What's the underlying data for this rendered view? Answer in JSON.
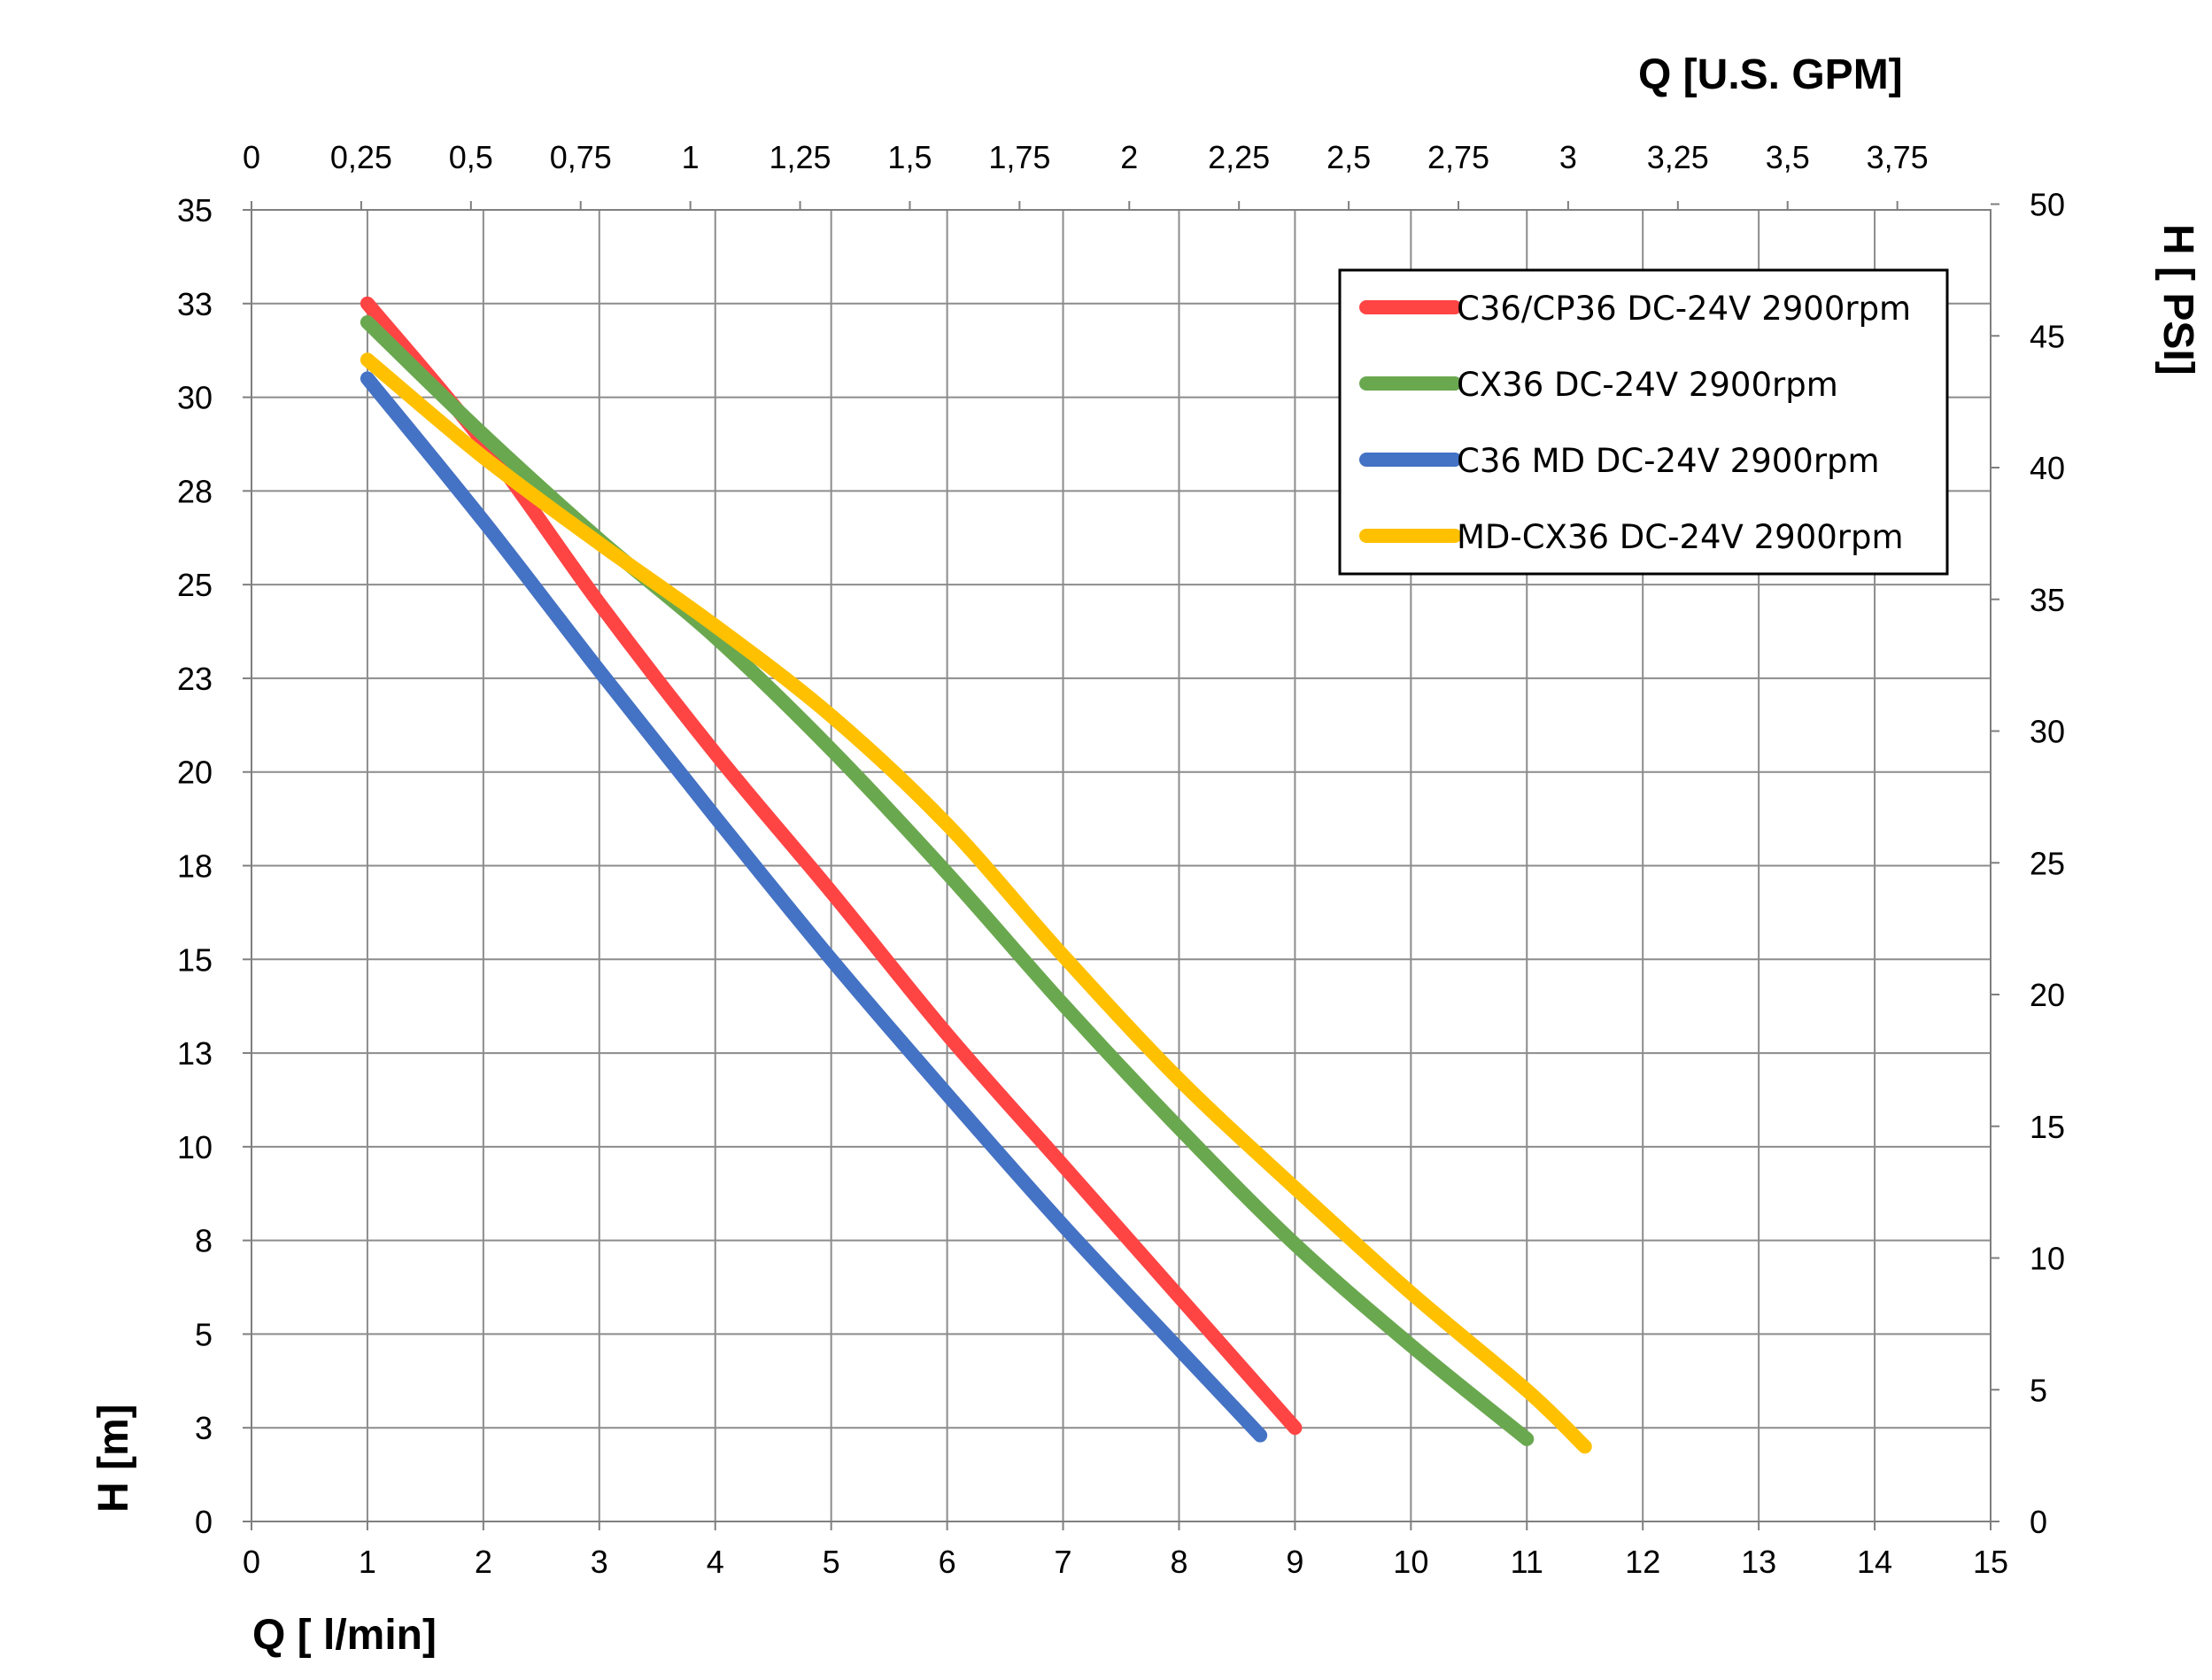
{
  "chart_data": {
    "type": "line",
    "x_axis_bottom": {
      "label": "Q [ l/min]",
      "range": [
        0,
        15
      ],
      "ticks": [
        "0",
        "1",
        "2",
        "3",
        "4",
        "5",
        "6",
        "7",
        "8",
        "9",
        "10",
        "11",
        "12",
        "13",
        "14",
        "15"
      ]
    },
    "x_axis_top": {
      "label": "Q  [U.S. GPM]",
      "ticks": [
        {
          "label": "0",
          "value": 0
        },
        {
          "label": "0,25",
          "value": 0.25
        },
        {
          "label": "0,5",
          "value": 0.5
        },
        {
          "label": "0,75",
          "value": 0.75
        },
        {
          "label": "1",
          "value": 1
        },
        {
          "label": "1,25",
          "value": 1.25
        },
        {
          "label": "1,5",
          "value": 1.5
        },
        {
          "label": "1,75",
          "value": 1.75
        },
        {
          "label": "2",
          "value": 2
        },
        {
          "label": "2,25",
          "value": 2.25
        },
        {
          "label": "2,5",
          "value": 2.5
        },
        {
          "label": "2,75",
          "value": 2.75
        },
        {
          "label": "3",
          "value": 3
        },
        {
          "label": "3,25",
          "value": 3.25
        },
        {
          "label": "3,5",
          "value": 3.5
        },
        {
          "label": "3,75",
          "value": 3.75
        }
      ]
    },
    "y_axis_left": {
      "label": "H [m]",
      "range": [
        0,
        35
      ],
      "ticks": [
        "0",
        "3",
        "5",
        "8",
        "10",
        "13",
        "15",
        "18",
        "20",
        "23",
        "25",
        "28",
        "30",
        "33",
        "35"
      ]
    },
    "y_axis_right": {
      "label": "H [ PSI]",
      "ticks": [
        {
          "label": "0",
          "value": 0
        },
        {
          "label": "5",
          "value": 5
        },
        {
          "label": "10",
          "value": 10
        },
        {
          "label": "15",
          "value": 15
        },
        {
          "label": "20",
          "value": 20
        },
        {
          "label": "25",
          "value": 25
        },
        {
          "label": "30",
          "value": 30
        },
        {
          "label": "35",
          "value": 35
        },
        {
          "label": "40",
          "value": 40
        },
        {
          "label": "45",
          "value": 45
        },
        {
          "label": "50",
          "value": 50
        }
      ]
    },
    "grid": true,
    "legend_position": "top-right",
    "series": [
      {
        "name": "C36/CP36 DC-24V 2900rpm",
        "color": "#ff4444",
        "x": [
          1,
          2,
          3,
          4,
          5,
          6,
          7,
          8,
          9
        ],
        "y": [
          32.5,
          28.8,
          24.5,
          20.5,
          16.8,
          13,
          9.5,
          6,
          2.5
        ]
      },
      {
        "name": "CX36 DC-24V 2900rpm",
        "color": "#6aa84f",
        "x": [
          1,
          2,
          3,
          4,
          5,
          6,
          7,
          8,
          9,
          10,
          11
        ],
        "y": [
          32,
          29,
          26.2,
          23.6,
          20.6,
          17.3,
          13.8,
          10.5,
          7.4,
          4.7,
          2.2
        ]
      },
      {
        "name": "C36 MD DC-24V 2900rpm",
        "color": "#4472c4",
        "x": [
          1,
          2,
          3,
          4,
          5,
          6,
          7,
          8,
          8.7
        ],
        "y": [
          30.5,
          26.7,
          22.7,
          18.8,
          15,
          11.4,
          7.9,
          4.6,
          2.3
        ]
      },
      {
        "name": "MD-CX36 DC-24V 2900rpm",
        "color": "#ffc000",
        "x": [
          1,
          2,
          3,
          4,
          5,
          6,
          7,
          8,
          9,
          10,
          11,
          11.5
        ],
        "y": [
          31,
          28.4,
          26.1,
          23.9,
          21.5,
          18.6,
          15.1,
          11.8,
          8.9,
          6.1,
          3.5,
          2
        ]
      }
    ]
  }
}
